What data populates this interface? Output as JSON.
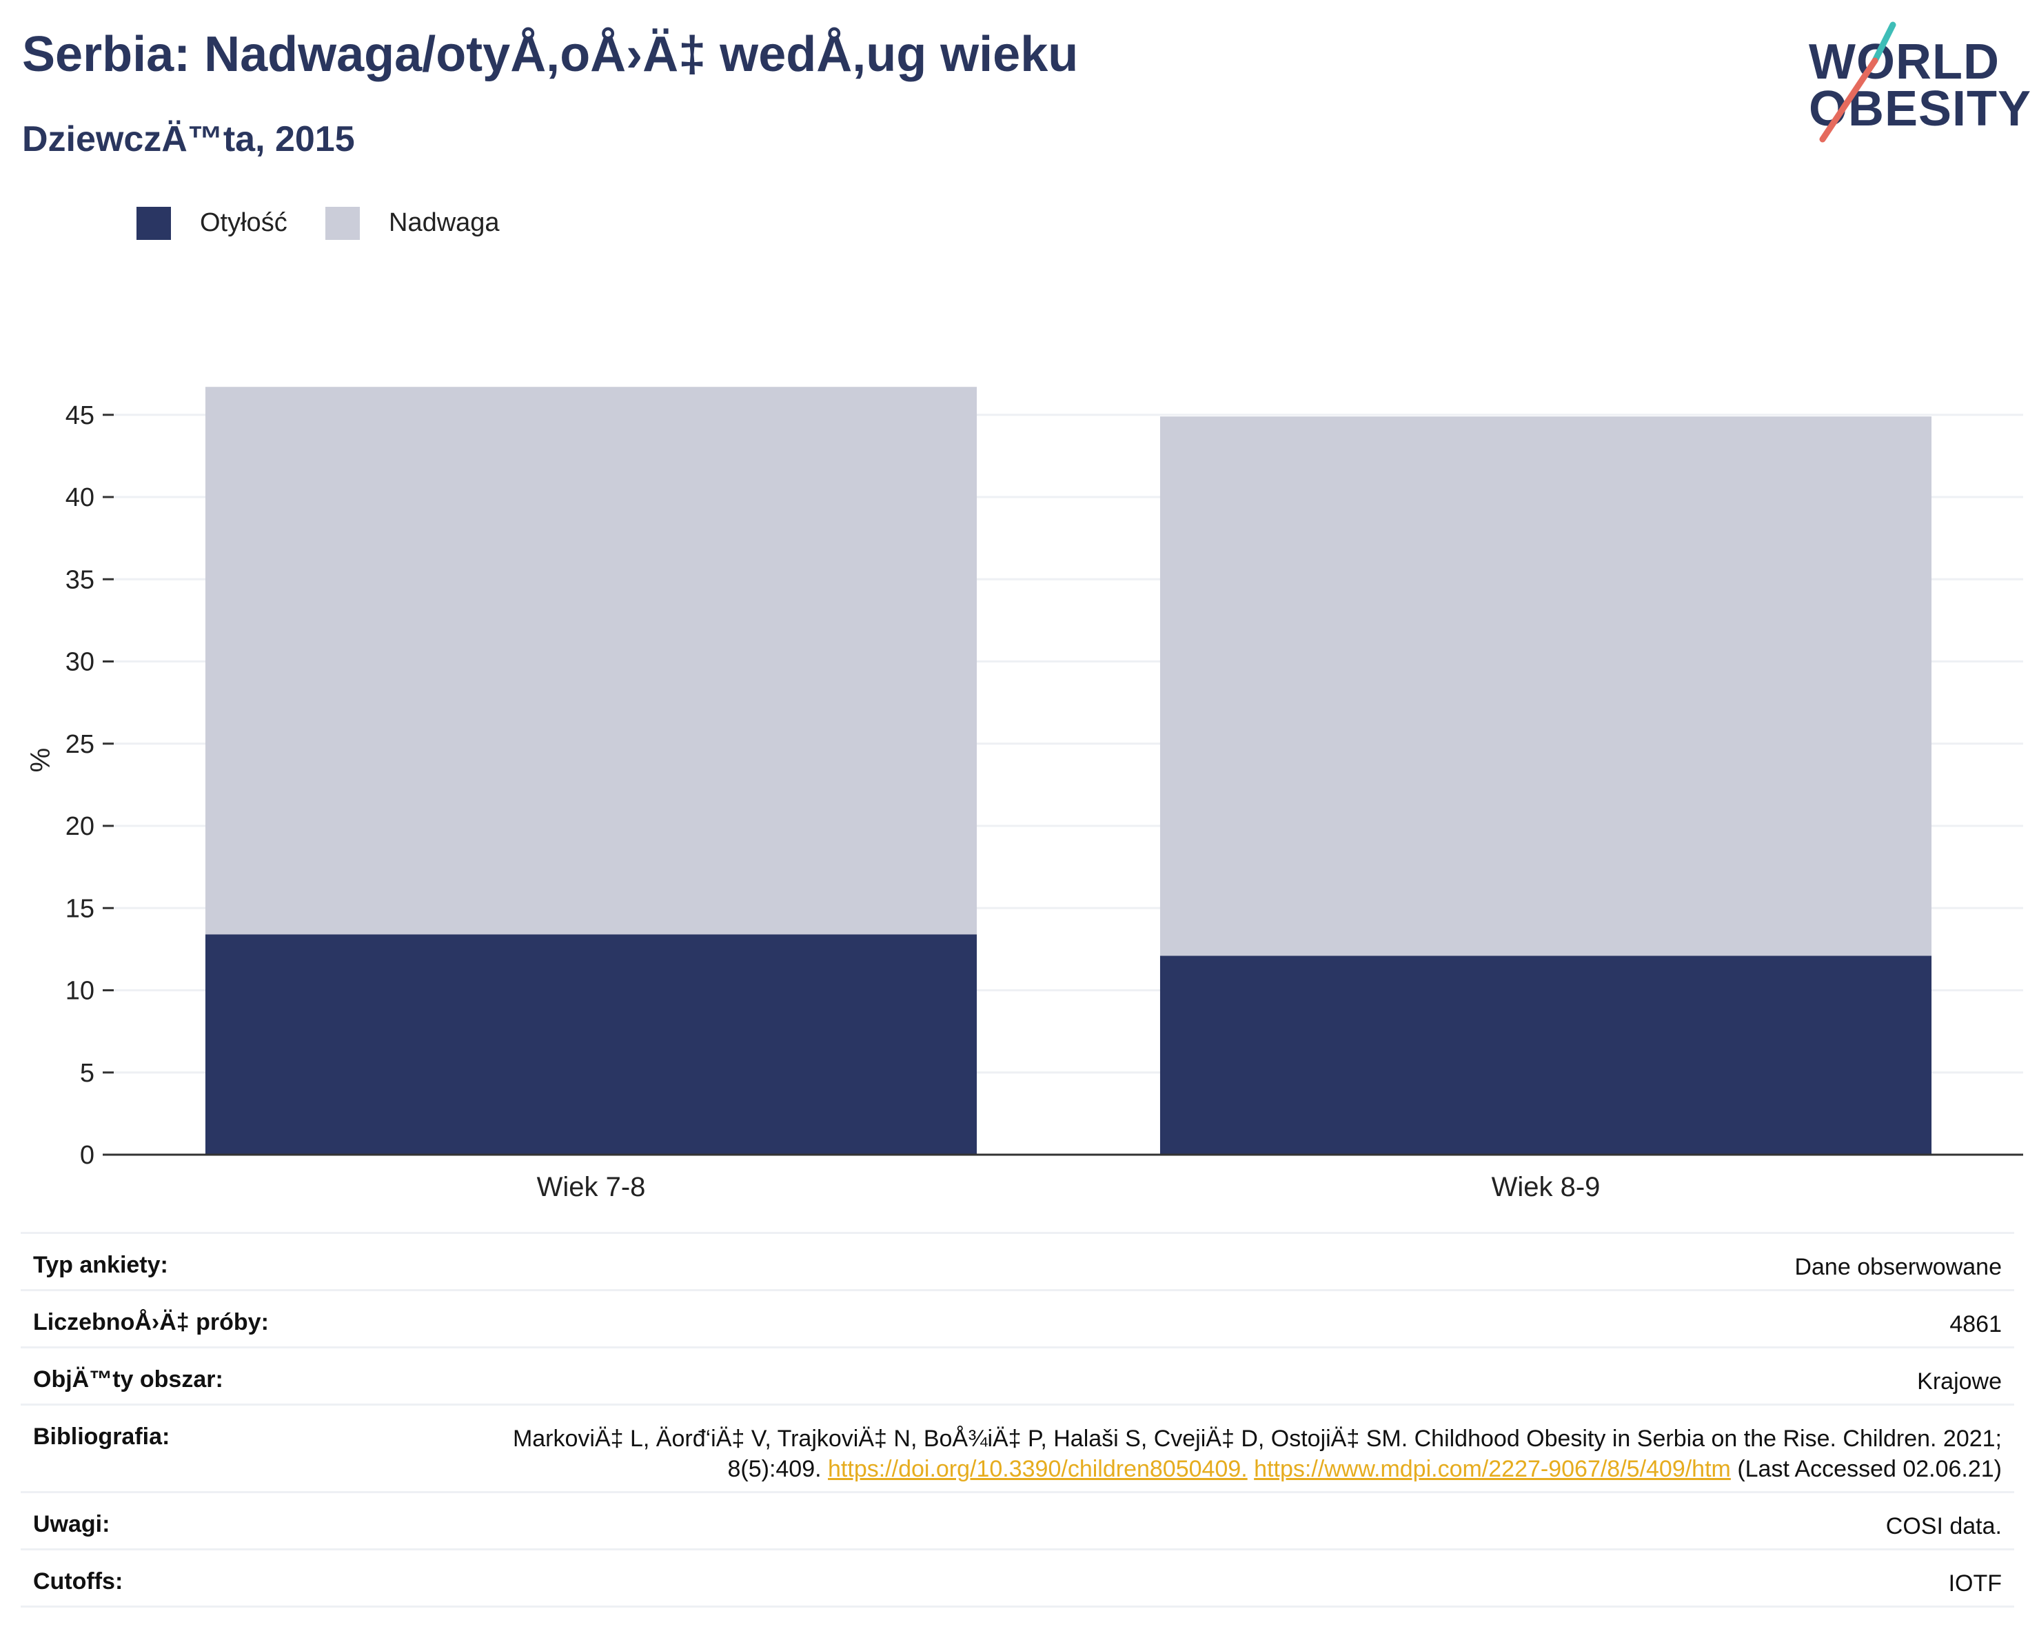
{
  "title": "Serbia: Nadwaga/otyÅ‚oÅ›Ä‡ wedÅ‚ug wieku",
  "subtitle": "DziewczÄ™ta, 2015",
  "logo": {
    "line1": "WORLD",
    "line2": "OBESITY"
  },
  "colors": {
    "obesity": "#2a3663",
    "overweight": "#cbcdd9",
    "title": "#2a365e",
    "link": "#e6ac1e",
    "grid": "#eef0f4"
  },
  "legend": [
    {
      "label": "Otyłość",
      "color": "#2a3663"
    },
    {
      "label": "Nadwaga",
      "color": "#cbcdd9"
    }
  ],
  "chart_data": {
    "type": "bar",
    "stacked": true,
    "categories": [
      "Wiek 7-8",
      "Wiek 8-9"
    ],
    "series": [
      {
        "name": "Otyłość",
        "values": [
          13.4,
          12.1
        ]
      },
      {
        "name": "Nadwaga",
        "values": [
          33.3,
          32.8
        ]
      }
    ],
    "ylabel": "%",
    "yticks": [
      0,
      5,
      10,
      15,
      20,
      25,
      30,
      35,
      40,
      45
    ],
    "ylim": [
      0,
      47
    ],
    "grid": true,
    "legend_position": "top-left"
  },
  "meta": [
    {
      "key": "Typ ankiety:",
      "value": "Dane obserwowane"
    },
    {
      "key": "LiczebnoÅ›Ä‡ próby:",
      "value": "4861"
    },
    {
      "key": "ObjÄ™ty obszar:",
      "value": "Krajowe"
    },
    {
      "key": "Bibliografia:",
      "text1": "MarkoviÄ‡ L, Äorđ‘iÄ‡ V, TrajkoviÄ‡ N, BoÅ¾iÄ‡ P, Halaši S, CvejiÄ‡ D, OstojiÄ‡ SM. Childhood Obesity in Serbia on the Rise. Children. 2021; 8(5):409. ",
      "link1": "https://doi.org/10.3390/children8050409.",
      "link2": "https://www.mdpi.com/2227-9067/8/5/409/htm",
      "text2": " (Last Accessed 02.06.21)"
    },
    {
      "key": "Uwagi:",
      "value": "COSI data."
    },
    {
      "key": "Cutoffs:",
      "value": "IOTF"
    }
  ]
}
